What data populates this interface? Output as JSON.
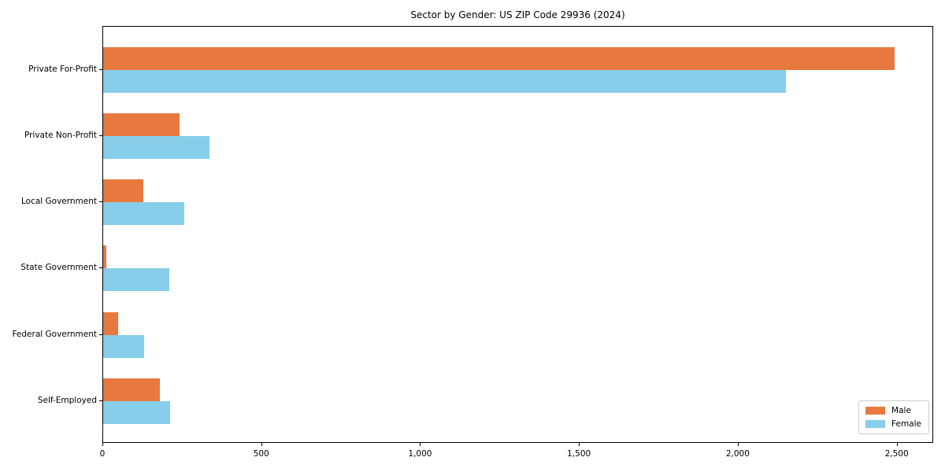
{
  "title": "Sector by Gender: US ZIP Code 29936 (2024)",
  "chart_data": {
    "type": "bar",
    "orientation": "horizontal",
    "title": "Sector by Gender: US ZIP Code 29936 (2024)",
    "xlabel": "",
    "ylabel": "",
    "categories": [
      "Private For-Profit",
      "Private Non-Profit",
      "Local Government",
      "State Government",
      "Federal Government",
      "Self-Employed"
    ],
    "series": [
      {
        "name": "Male",
        "color": "#E8793E",
        "values": [
          2490,
          240,
          127,
          9,
          47,
          178
        ]
      },
      {
        "name": "Female",
        "color": "#87CEEB",
        "values": [
          2148,
          335,
          255,
          209,
          128,
          211
        ]
      }
    ],
    "xlim": [
      0,
      2615
    ],
    "xticks": [
      0,
      500,
      1000,
      1500,
      2000,
      2500
    ],
    "xtick_labels": [
      "0",
      "500",
      "1,000",
      "1,500",
      "2,000",
      "2,500"
    ],
    "grid": false,
    "legend_position": "lower right"
  }
}
